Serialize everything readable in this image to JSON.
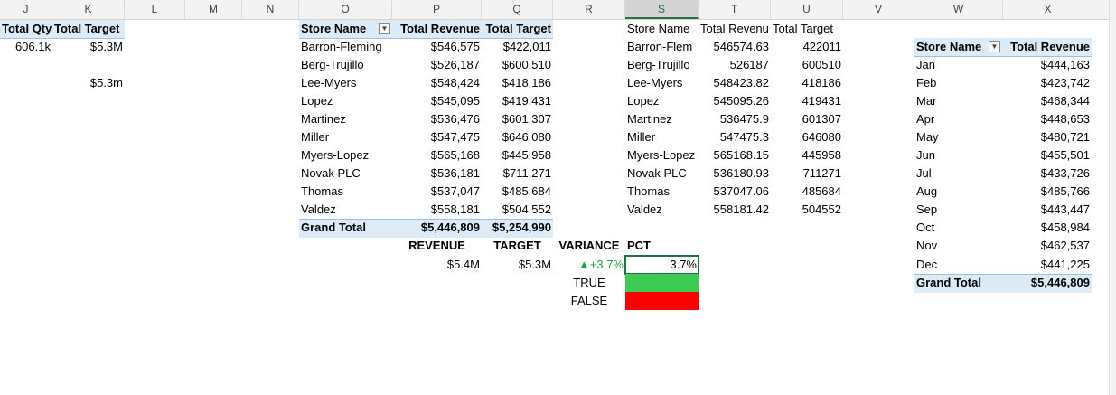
{
  "columns": [
    "J",
    "K",
    "L",
    "M",
    "N",
    "O",
    "P",
    "Q",
    "R",
    "S",
    "T",
    "U",
    "V",
    "W",
    "X"
  ],
  "selected_column": "S",
  "summary": {
    "headers": [
      "Total Qty",
      "Total Target"
    ],
    "qty": "606.1k",
    "target": "$5.3M",
    "target_alt": "$5.3m"
  },
  "pivot1": {
    "headers": [
      "Store Name",
      "Total Revenue",
      "Total Target"
    ],
    "rows": [
      [
        "Barron-Fleming",
        "$546,575",
        "$422,011"
      ],
      [
        "Berg-Trujillo",
        "$526,187",
        "$600,510"
      ],
      [
        "Lee-Myers",
        "$548,424",
        "$418,186"
      ],
      [
        "Lopez",
        "$545,095",
        "$419,431"
      ],
      [
        "Martinez",
        "$536,476",
        "$601,307"
      ],
      [
        "Miller",
        "$547,475",
        "$646,080"
      ],
      [
        "Myers-Lopez",
        "$565,168",
        "$445,958"
      ],
      [
        "Novak PLC",
        "$536,181",
        "$711,271"
      ],
      [
        "Thomas",
        "$537,047",
        "$485,684"
      ],
      [
        "Valdez",
        "$558,181",
        "$504,552"
      ]
    ],
    "total": [
      "Grand Total",
      "$5,446,809",
      "$5,254,990"
    ]
  },
  "kpi": {
    "headers": [
      "REVENUE",
      "TARGET",
      "VARIANCE",
      "PCT"
    ],
    "revenue": "$5.4M",
    "target": "$5.3M",
    "variance": "▲+3.7%",
    "pct": "3.7%",
    "true_label": "TRUE",
    "false_label": "FALSE",
    "true_color": "#3dcb54",
    "false_color": "#ff0000",
    "variance_color": "#1e9e48"
  },
  "raw_table": {
    "headers": [
      "Store Name",
      "Total Revenu",
      "Total Target"
    ],
    "rows": [
      [
        "Barron-Flem",
        "546574.63",
        "422011"
      ],
      [
        "Berg-Trujillo",
        "526187",
        "600510"
      ],
      [
        "Lee-Myers",
        "548423.82",
        "418186"
      ],
      [
        "Lopez",
        "545095.26",
        "419431"
      ],
      [
        "Martinez",
        "536475.9",
        "601307"
      ],
      [
        "Miller",
        "547475.3",
        "646080"
      ],
      [
        "Myers-Lopez",
        "565168.15",
        "445958"
      ],
      [
        "Novak PLC",
        "536180.93",
        "711271"
      ],
      [
        "Thomas",
        "537047.06",
        "485684"
      ],
      [
        "Valdez",
        "558181.42",
        "504552"
      ]
    ]
  },
  "pivot2": {
    "headers": [
      "Store Name",
      "Total Revenue"
    ],
    "rows": [
      [
        "Jan",
        "$444,163"
      ],
      [
        "Feb",
        "$423,742"
      ],
      [
        "Mar",
        "$468,344"
      ],
      [
        "Apr",
        "$448,653"
      ],
      [
        "May",
        "$480,721"
      ],
      [
        "Jun",
        "$455,501"
      ],
      [
        "Jul",
        "$433,726"
      ],
      [
        "Aug",
        "$485,766"
      ],
      [
        "Sep",
        "$443,447"
      ],
      [
        "Oct",
        "$458,984"
      ],
      [
        "Nov",
        "$462,537"
      ],
      [
        "Dec",
        "$441,225"
      ]
    ],
    "total": [
      "Grand Total",
      "$5,446,809"
    ]
  },
  "colors": {
    "header_band": "#ddebf7",
    "accent": "#217346"
  }
}
